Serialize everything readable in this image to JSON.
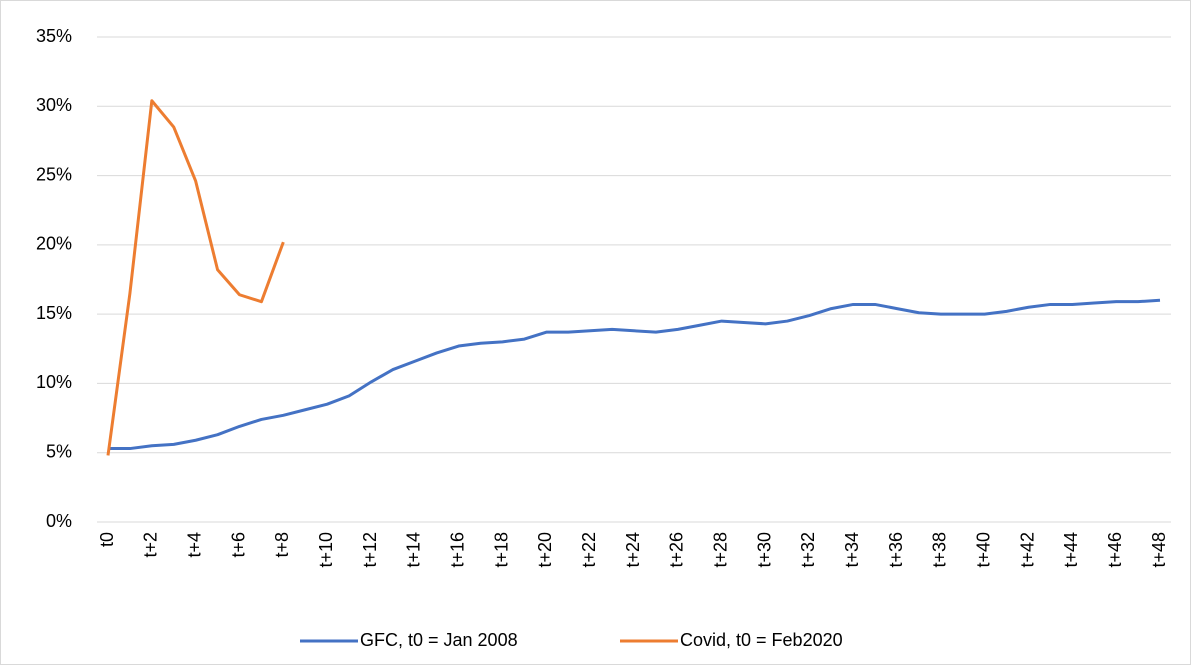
{
  "chart_data": {
    "type": "line",
    "categories": [
      "t0",
      null,
      "t+2",
      null,
      "t+4",
      null,
      "t+6",
      null,
      "t+8",
      null,
      "t+10",
      null,
      "t+12",
      null,
      "t+14",
      null,
      "t+16",
      null,
      "t+18",
      null,
      "t+20",
      null,
      "t+22",
      null,
      "t+24",
      null,
      "t+26",
      null,
      "t+28",
      null,
      "t+30",
      null,
      "t+32",
      null,
      "t+34",
      null,
      "t+36",
      null,
      "t+38",
      null,
      "t+40",
      null,
      "t+42",
      null,
      "t+44",
      null,
      "t+46",
      null,
      "t+48"
    ],
    "series": [
      {
        "name": "GFC, t0 = Jan 2008",
        "color": "#4472c4",
        "values": [
          5.3,
          5.3,
          5.5,
          5.6,
          5.9,
          6.3,
          6.9,
          7.4,
          7.7,
          8.1,
          8.5,
          9.1,
          10.1,
          11.0,
          11.6,
          12.2,
          12.7,
          12.9,
          13.0,
          13.2,
          13.7,
          13.7,
          13.8,
          13.9,
          13.8,
          13.7,
          13.9,
          14.2,
          14.5,
          14.4,
          14.3,
          14.5,
          14.9,
          15.4,
          15.7,
          15.7,
          15.4,
          15.1,
          15.0,
          15.0,
          15.0,
          15.2,
          15.5,
          15.7,
          15.7,
          15.8,
          15.9,
          15.9,
          16.0
        ]
      },
      {
        "name": "Covid, t0 = Feb2020",
        "color": "#ed7d31",
        "values": [
          4.8,
          16.5,
          30.4,
          28.5,
          24.6,
          18.2,
          16.4,
          15.9,
          20.2,
          null,
          null,
          null,
          null,
          null,
          null,
          null,
          null,
          null,
          null,
          null,
          null,
          null,
          null,
          null,
          null,
          null,
          null,
          null,
          null,
          null,
          null,
          null,
          null,
          null,
          null,
          null,
          null,
          null,
          null,
          null,
          null,
          null,
          null,
          null,
          null,
          null,
          null,
          null,
          null
        ]
      }
    ],
    "ylim": [
      0,
      35
    ],
    "yticks": [
      {
        "value": 0,
        "label": "0%"
      },
      {
        "value": 5,
        "label": "5%"
      },
      {
        "value": 10,
        "label": "10%"
      },
      {
        "value": 15,
        "label": "15%"
      },
      {
        "value": 20,
        "label": "20%"
      },
      {
        "value": 25,
        "label": "25%"
      },
      {
        "value": 30,
        "label": "30%"
      },
      {
        "value": 35,
        "label": "35%"
      }
    ],
    "grid": true,
    "legend": "bottom"
  }
}
